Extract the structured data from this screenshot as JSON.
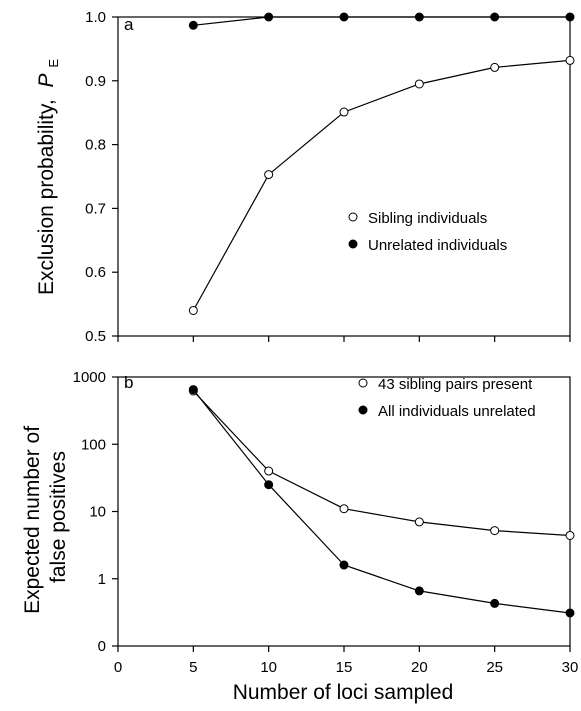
{
  "chart_data": [
    {
      "panel": "a",
      "type": "line",
      "ylabel": "Exclusion probability,",
      "ylabel_symbol": "P",
      "ylabel_subscript": "E",
      "x": [
        5,
        10,
        15,
        20,
        25,
        30
      ],
      "xlim": [
        0,
        30
      ],
      "ylim": [
        0.5,
        1.0
      ],
      "y_ticks": [
        0.5,
        0.6,
        0.7,
        0.8,
        0.9,
        1.0
      ],
      "y_tick_labels": [
        "0.5",
        "0.6",
        "0.7",
        "0.8",
        "0.9",
        "1.0"
      ],
      "scale": "linear",
      "legend_position": "center-right",
      "series": [
        {
          "name": "Sibling individuals",
          "marker": "open-circle",
          "values": [
            0.54,
            0.753,
            0.851,
            0.895,
            0.921,
            0.932
          ]
        },
        {
          "name": "Unrelated individuals",
          "marker": "filled-circle",
          "values": [
            0.987,
            1.0,
            1.0,
            1.0,
            1.0,
            1.0
          ]
        }
      ]
    },
    {
      "panel": "b",
      "type": "line",
      "ylabel_lines": [
        "Expected number of",
        "false positives"
      ],
      "xlabel": "Number of loci sampled",
      "x": [
        5,
        10,
        15,
        20,
        25,
        30
      ],
      "xlim": [
        0,
        30
      ],
      "x_ticks": [
        0,
        5,
        10,
        15,
        20,
        25,
        30
      ],
      "x_tick_labels": [
        "0",
        "5",
        "10",
        "15",
        "20",
        "25",
        "30"
      ],
      "scale": "log",
      "y_ticks": [
        0,
        1,
        10,
        100,
        1000
      ],
      "y_tick_labels": [
        "0",
        "1",
        "10",
        "100",
        "1000"
      ],
      "legend_position": "top-right",
      "series": [
        {
          "name": "43 sibling pairs present",
          "marker": "open-circle",
          "values": [
            620,
            40,
            11,
            7,
            5.2,
            4.4
          ]
        },
        {
          "name": "All individuals unrelated",
          "marker": "filled-circle",
          "values": [
            650,
            25,
            1.6,
            0.66,
            0.43,
            0.31
          ]
        }
      ]
    }
  ]
}
